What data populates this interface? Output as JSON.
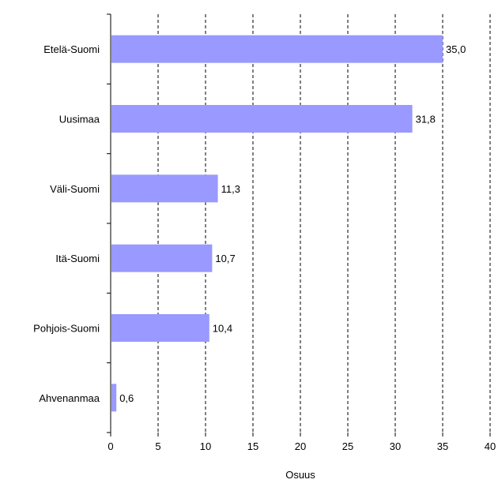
{
  "colors": {
    "bar": "#9999ff",
    "axis": "#000000",
    "grid": "#000000",
    "background": "#ffffff"
  },
  "chart_data": {
    "type": "bar",
    "orientation": "horizontal",
    "categories": [
      "Etelä-Suomi",
      "Uusimaa",
      "Väli-Suomi",
      "Itä-Suomi",
      "Pohjois-Suomi",
      "Ahvenanmaa"
    ],
    "values": [
      35.0,
      31.8,
      11.3,
      10.7,
      10.4,
      0.6
    ],
    "value_labels": [
      "35,0",
      "31,8",
      "11,3",
      "10,7",
      "10,4",
      "0,6"
    ],
    "title": "",
    "xlabel": "Osuus",
    "ylabel": "",
    "xlim": [
      0,
      40
    ],
    "x_ticks": [
      "0",
      "5",
      "10",
      "15",
      "20",
      "25",
      "30",
      "35",
      "40"
    ],
    "grid": "vertical dashed",
    "legend": "none"
  }
}
